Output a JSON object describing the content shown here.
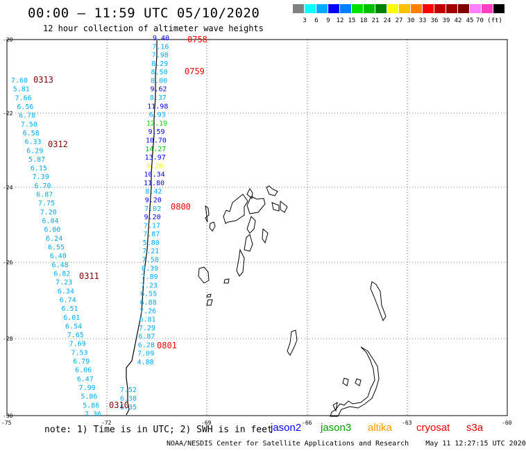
{
  "header": {
    "title": "00:00 – 11:59 UTC 05/10/2020",
    "subtitle": "12 hour collection of altimeter wave heights"
  },
  "legend": {
    "colors": [
      "#808080",
      "#00ffff",
      "#00aaff",
      "#0000ff",
      "#0080ff",
      "#00e000",
      "#00c000",
      "#008000",
      "#ffff00",
      "#ffc000",
      "#ff8000",
      "#ff0000",
      "#c00000",
      "#a00000",
      "#800000",
      "#ff80ff",
      "#ff40c0",
      "#000000"
    ],
    "labels": [
      "3",
      "6",
      "9",
      "12",
      "15",
      "18",
      "21",
      "24",
      "27",
      "30",
      "33",
      "36",
      "39",
      "42",
      "45",
      "70 (ft)"
    ]
  },
  "axes": {
    "lat_labels": [
      "-20",
      "-22",
      "-24",
      "-26",
      "-28",
      "-30"
    ],
    "lon_labels": [
      "-75",
      "-72",
      "-69",
      "-66",
      "-63",
      "-60"
    ]
  },
  "passes": [
    {
      "time": "0758",
      "color": "#ff0000"
    },
    {
      "time": "0759",
      "color": "#ff0000"
    },
    {
      "time": "0800",
      "color": "#ff0000"
    },
    {
      "time": "0801",
      "color": "#ff0000"
    },
    {
      "time": "0313",
      "color": "#800000"
    },
    {
      "time": "0312",
      "color": "#800000"
    },
    {
      "time": "0311",
      "color": "#800000"
    },
    {
      "time": "0310",
      "color": "#800000"
    }
  ],
  "track_east_values": [
    "9.40",
    "7.16",
    "7.98",
    "8.29",
    "8.50",
    "8.00",
    "9.62",
    "8.37",
    "11.98",
    "6.93",
    "12.19",
    "9.59",
    "10.70",
    "14.27",
    "13.97",
    "9.20",
    "10.34",
    "11.80",
    "8.42",
    "9.20",
    "7.02",
    "9.20",
    "7.17",
    "7.87",
    "5.80",
    "7.21",
    "7.58",
    "8.39",
    "7.89",
    "7.23",
    "6.55",
    "6.88",
    "7.26",
    "6.81",
    "7.29",
    "6.87",
    "6.28",
    "7.09",
    "4.88",
    "7.52",
    "6.38",
    "6.35"
  ],
  "track_east_colors": [
    "#0000ff",
    "#00aaff",
    "#00aaff",
    "#00aaff",
    "#00aaff",
    "#00aaff",
    "#0000ff",
    "#00aaff",
    "#0000ff",
    "#00aaff",
    "#00e000",
    "#0000ff",
    "#0000ff",
    "#00c000",
    "#0000ff",
    "#ffff00",
    "#0000ff",
    "#0000ff",
    "#00aaff",
    "#0000ff",
    "#00aaff",
    "#0000ff",
    "#00aaff",
    "#00aaff",
    "#00aaff",
    "#00aaff",
    "#00aaff",
    "#00aaff",
    "#00aaff",
    "#00aaff",
    "#00aaff",
    "#00aaff",
    "#00aaff",
    "#00aaff",
    "#00aaff",
    "#00aaff",
    "#00aaff",
    "#00aaff",
    "#00aaff",
    "#00aaff",
    "#00aaff",
    "#00aaff"
  ],
  "track_west_values": [
    "7.60",
    "5.81",
    "7.66",
    "6.56",
    "6.78",
    "7.50",
    "6.58",
    "6.33",
    "6.29",
    "5.87",
    "6.15",
    "7.39",
    "6.70",
    "6.87",
    "7.75",
    "7.20",
    "6.04",
    "6.00",
    "6.24",
    "6.55",
    "6.40",
    "6.48",
    "6.82",
    "7.23",
    "6.34",
    "6.74",
    "6.51",
    "6.01",
    "6.54",
    "7.65",
    "7.69",
    "7.53",
    "6.79",
    "6.06",
    "6.47",
    "7.99",
    "5.86",
    "5.86",
    "7.36"
  ],
  "footer": {
    "note": "note: 1) Time is in UTC; 2) SWH is in feet",
    "satellites": [
      {
        "name": "jason2",
        "color": "#0000ff"
      },
      {
        "name": "jason3",
        "color": "#00a000"
      },
      {
        "name": "altika",
        "color": "#ff9900"
      },
      {
        "name": "cryosat",
        "color": "#ff0000"
      },
      {
        "name": "s3a",
        "color": "#e00000"
      }
    ],
    "credit": "NOAA/NESDIS Center for Satellite Applications and Research    May 11 12:27:15 UTC 2020"
  }
}
